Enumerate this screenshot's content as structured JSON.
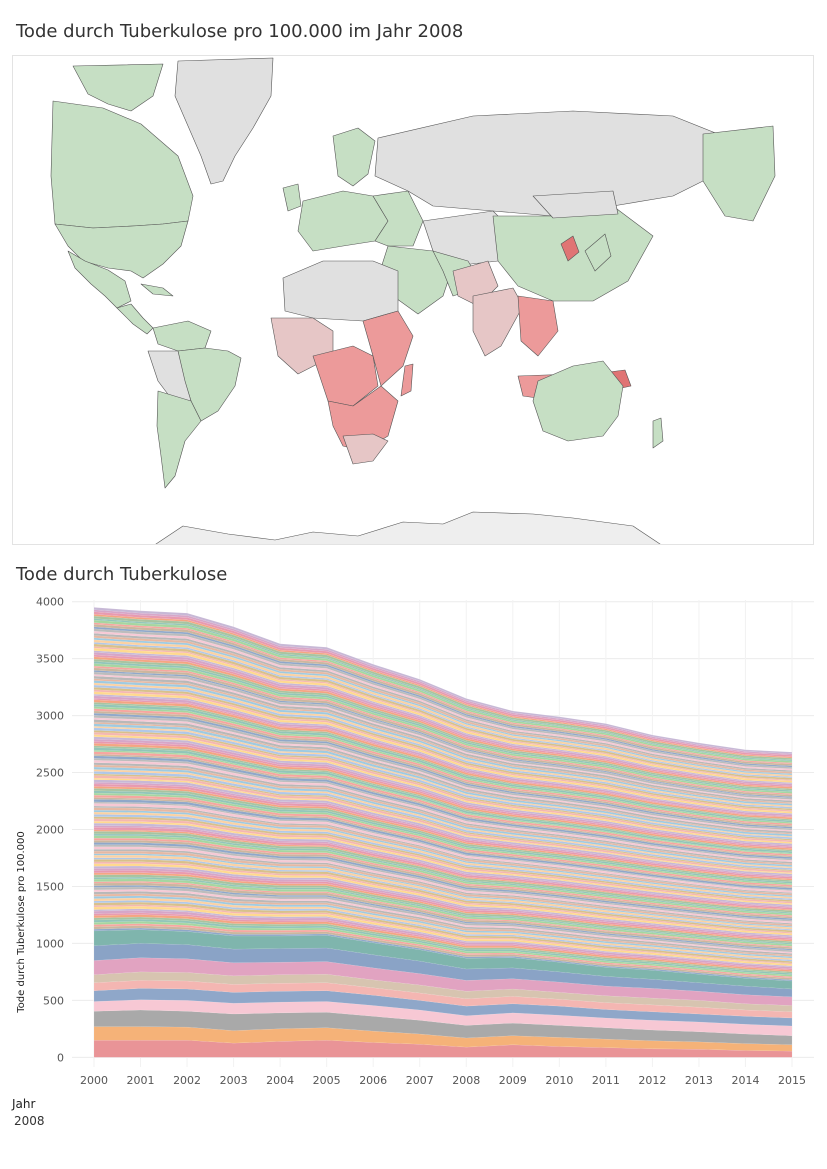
{
  "map": {
    "title": "Tode durch Tuberkulose pro 100.000 im Jahr 2008",
    "colors": {
      "no_data": "#e0e0e0",
      "low": "#c6dfc4",
      "mid": "#e6c6c6",
      "high": "#ec9a9a",
      "highest": "#e07474",
      "border": "#555555",
      "cold_region": "#eeeeee"
    }
  },
  "chart_data": {
    "type": "area",
    "stacked": true,
    "title": "Tode durch Tuberkulose",
    "xlabel": "",
    "ylabel": "Tode durch Tuberkulose pro 100.000",
    "x": [
      2000,
      2001,
      2002,
      2003,
      2004,
      2005,
      2006,
      2007,
      2008,
      2009,
      2010,
      2011,
      2012,
      2013,
      2014,
      2015
    ],
    "total": [
      3950,
      3920,
      3900,
      3780,
      3630,
      3600,
      3450,
      3320,
      3150,
      3040,
      2990,
      2930,
      2830,
      2760,
      2700,
      2680
    ],
    "bottom_bands": [
      {
        "values": [
          150,
          150,
          150,
          125,
          140,
          150,
          130,
          115,
          90,
          110,
          95,
          85,
          75,
          70,
          60,
          55
        ],
        "color": "#e99497"
      },
      {
        "values": [
          120,
          120,
          115,
          110,
          110,
          110,
          100,
          90,
          80,
          80,
          80,
          75,
          70,
          65,
          60,
          55
        ],
        "color": "#f5b278"
      },
      {
        "values": [
          135,
          145,
          140,
          145,
          140,
          135,
          130,
          120,
          110,
          110,
          105,
          100,
          95,
          90,
          85,
          80
        ],
        "color": "#a9a9a9"
      },
      {
        "values": [
          85,
          90,
          95,
          95,
          95,
          95,
          95,
          90,
          85,
          90,
          90,
          85,
          85,
          85,
          85,
          85
        ],
        "color": "#f7c8d4"
      },
      {
        "values": [
          95,
          100,
          100,
          95,
          95,
          95,
          90,
          85,
          85,
          80,
          80,
          75,
          75,
          70,
          70,
          70
        ],
        "color": "#8fa7c9"
      },
      {
        "values": [
          70,
          70,
          70,
          70,
          70,
          70,
          65,
          65,
          65,
          65,
          60,
          60,
          60,
          60,
          55,
          55
        ],
        "color": "#f4b6b2"
      },
      {
        "values": [
          70,
          75,
          75,
          75,
          75,
          75,
          70,
          70,
          65,
          65,
          60,
          60,
          60,
          60,
          55,
          55
        ],
        "color": "#d7c4b0"
      },
      {
        "values": [
          125,
          125,
          120,
          115,
          110,
          110,
          105,
          100,
          95,
          90,
          90,
          85,
          85,
          80,
          80,
          75
        ],
        "color": "#e1a3c1"
      },
      {
        "values": [
          130,
          125,
          125,
          120,
          120,
          120,
          115,
          110,
          100,
          95,
          90,
          85,
          80,
          75,
          75,
          70
        ],
        "color": "#8aa3c6"
      },
      {
        "values": [
          130,
          120,
          115,
          115,
          110,
          110,
          105,
          100,
          95,
          90,
          85,
          80,
          80,
          75,
          70,
          70
        ],
        "color": "#7fb5ad"
      }
    ],
    "band_palette": [
      "#f5b7b1",
      "#fbd1a2",
      "#b8b8b8",
      "#8fa7c9",
      "#a5d6a0",
      "#f4a582",
      "#c7b8d6",
      "#d9c08a",
      "#9ecae1",
      "#f7c8d4",
      "#cbb69e",
      "#92c5b8",
      "#e89ab0",
      "#ffd98e",
      "#b0c7e8",
      "#e6b8a2",
      "#bcbcbc",
      "#f6a6a0",
      "#a7c4a0",
      "#d6a6c8"
    ],
    "ylim": [
      -85,
      4050
    ],
    "yticks": [
      0,
      500,
      1000,
      1500,
      2000,
      2500,
      3000,
      3500,
      4000
    ],
    "tick_labels_y": [
      "0",
      "500",
      "1000",
      "1500",
      "2000",
      "2500",
      "3000",
      "3500",
      "4000"
    ],
    "tick_labels_x": [
      "2000",
      "2001",
      "2002",
      "2003",
      "2004",
      "2005",
      "2006",
      "2007",
      "2008",
      "2009",
      "2010",
      "2011",
      "2012",
      "2013",
      "2014",
      "2015"
    ],
    "grid": true,
    "legend": "none"
  },
  "filter": {
    "label": "Jahr",
    "value": "2008"
  }
}
